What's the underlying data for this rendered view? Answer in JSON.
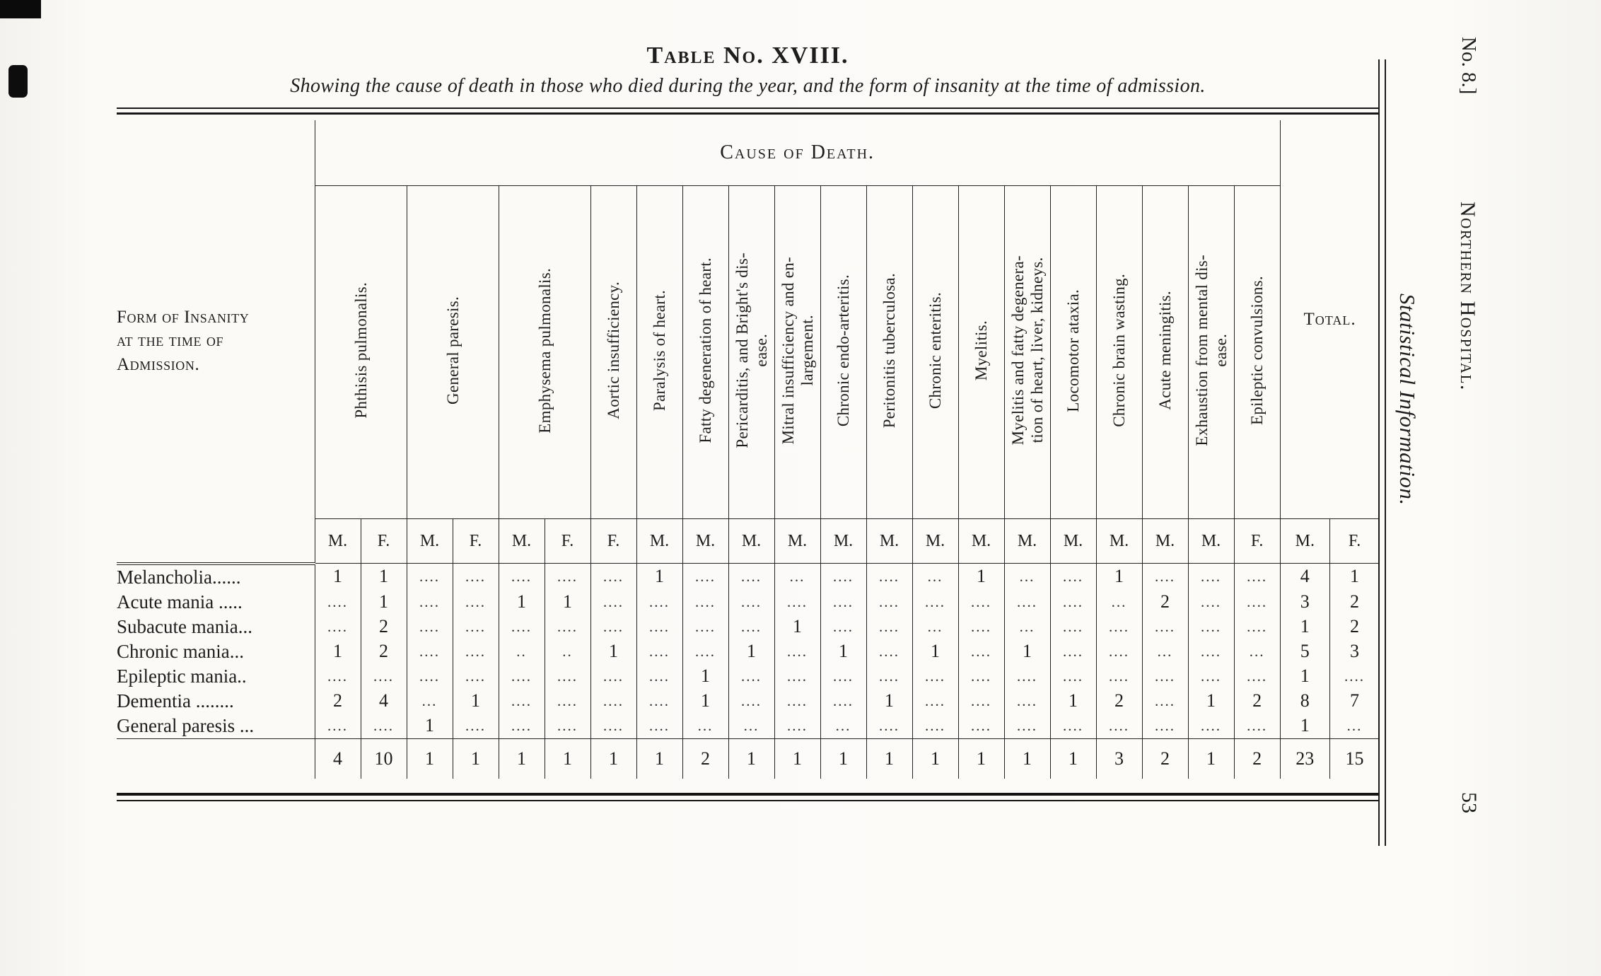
{
  "page": {
    "title": "Table No. XVIII.",
    "subtitle": "Showing the cause of death in those who died during the year, and the form of insanity at the time of admission.",
    "margin": {
      "issue_label": "No. 8.]",
      "running_title": "Northern Hospital.",
      "section_title": "Statistical Information.",
      "page_number": "53"
    }
  },
  "table": {
    "stub_header": "Form of Insanity\nat the time of\nAdmission.",
    "cause_header": "Cause of Death.",
    "total_header": "Total.",
    "cause_groups": [
      {
        "lines": [
          "Phthisis pulmonalis."
        ],
        "sexes": [
          "M.",
          "F."
        ]
      },
      {
        "lines": [
          "General paresis."
        ],
        "sexes": [
          "M.",
          "F."
        ]
      },
      {
        "lines": [
          "Emphysema pulmonalis."
        ],
        "sexes": [
          "M.",
          "F."
        ]
      },
      {
        "lines": [
          "Aortic insufficiency."
        ],
        "sexes": [
          "F."
        ]
      },
      {
        "lines": [
          "Paralysis of heart."
        ],
        "sexes": [
          "M."
        ]
      },
      {
        "lines": [
          "Fatty degeneration of heart."
        ],
        "sexes": [
          "M."
        ]
      },
      {
        "lines": [
          "Pericarditis, and Bright's dis-",
          "ease."
        ],
        "sexes": [
          "M."
        ]
      },
      {
        "lines": [
          "Mitral insufficiency and en-",
          "largement."
        ],
        "sexes": [
          "M."
        ]
      },
      {
        "lines": [
          "Chronic endo-arteritis."
        ],
        "sexes": [
          "M."
        ]
      },
      {
        "lines": [
          "Peritonitis tuberculosa."
        ],
        "sexes": [
          "M."
        ]
      },
      {
        "lines": [
          "Chronic enteritis."
        ],
        "sexes": [
          "M."
        ]
      },
      {
        "lines": [
          "Myelitis."
        ],
        "sexes": [
          "M."
        ]
      },
      {
        "lines": [
          "Myelitis and fatty degenera-",
          "tion of heart, liver, kidneys."
        ],
        "sexes": [
          "M."
        ]
      },
      {
        "lines": [
          "Locomotor ataxia."
        ],
        "sexes": [
          "M."
        ]
      },
      {
        "lines": [
          "Chronic brain wasting."
        ],
        "sexes": [
          "M."
        ]
      },
      {
        "lines": [
          "Acute meningitis."
        ],
        "sexes": [
          "M."
        ]
      },
      {
        "lines": [
          "Exhaustion from mental dis-",
          "ease."
        ],
        "sexes": [
          "M."
        ]
      },
      {
        "lines": [
          "Epileptic convulsions."
        ],
        "sexes": [
          "F."
        ]
      }
    ],
    "total_sexes": [
      "M.",
      "F."
    ],
    "rows": [
      {
        "label": "Melancholia......",
        "cells": [
          "1",
          "1",
          "....",
          "....",
          "....",
          "....",
          "....",
          "1",
          "....",
          "....",
          "...",
          "....",
          "....",
          "...",
          "1",
          "...",
          "....",
          "1",
          "....",
          "....",
          "....",
          "4",
          "1"
        ]
      },
      {
        "label": "Acute mania .....",
        "cells": [
          "....",
          "1",
          "....",
          "....",
          "1",
          "1",
          "....",
          "....",
          "....",
          "....",
          "....",
          "....",
          "....",
          "....",
          "....",
          "....",
          "....",
          "...",
          "2",
          "....",
          "....",
          "3",
          "2"
        ]
      },
      {
        "label": "Subacute mania...",
        "cells": [
          "....",
          "2",
          "....",
          "....",
          "....",
          "....",
          "....",
          "....",
          "....",
          "....",
          "1",
          "....",
          "....",
          "...",
          "....",
          "...",
          "....",
          "....",
          "....",
          "....",
          "....",
          "1",
          "2"
        ]
      },
      {
        "label": "Chronic mania...",
        "cells": [
          "1",
          "2",
          "....",
          "....",
          "..",
          "..",
          "1",
          "....",
          "....",
          "1",
          "....",
          "1",
          "....",
          "1",
          "....",
          "1",
          "....",
          "....",
          "...",
          "....",
          "...",
          "5",
          "3"
        ]
      },
      {
        "label": "Epileptic mania..",
        "cells": [
          "....",
          "....",
          "....",
          "....",
          "....",
          "....",
          "....",
          "....",
          "1",
          "....",
          "....",
          "....",
          "....",
          "....",
          "....",
          "....",
          "....",
          "....",
          "....",
          "....",
          "....",
          "1",
          "...."
        ]
      },
      {
        "label": "Dementia ........",
        "cells": [
          "2",
          "4",
          "...",
          "1",
          "....",
          "....",
          "....",
          "....",
          "1",
          "....",
          "....",
          "....",
          "1",
          "....",
          "....",
          "....",
          "1",
          "2",
          "....",
          "1",
          "2",
          "8",
          "7"
        ]
      },
      {
        "label": "General paresis ...",
        "cells": [
          "....",
          "....",
          "1",
          "....",
          "....",
          "....",
          "....",
          "....",
          "...",
          "...",
          "....",
          "...",
          "....",
          "....",
          "....",
          "....",
          "....",
          "....",
          "....",
          "....",
          "....",
          "1",
          "..."
        ]
      }
    ],
    "totals_row": {
      "label": "",
      "cells": [
        "4",
        "10",
        "1",
        "1",
        "1",
        "1",
        "1",
        "1",
        "2",
        "1",
        "1",
        "1",
        "1",
        "1",
        "1",
        "1",
        "1",
        "3",
        "2",
        "1",
        "2",
        "23",
        "15"
      ]
    }
  }
}
